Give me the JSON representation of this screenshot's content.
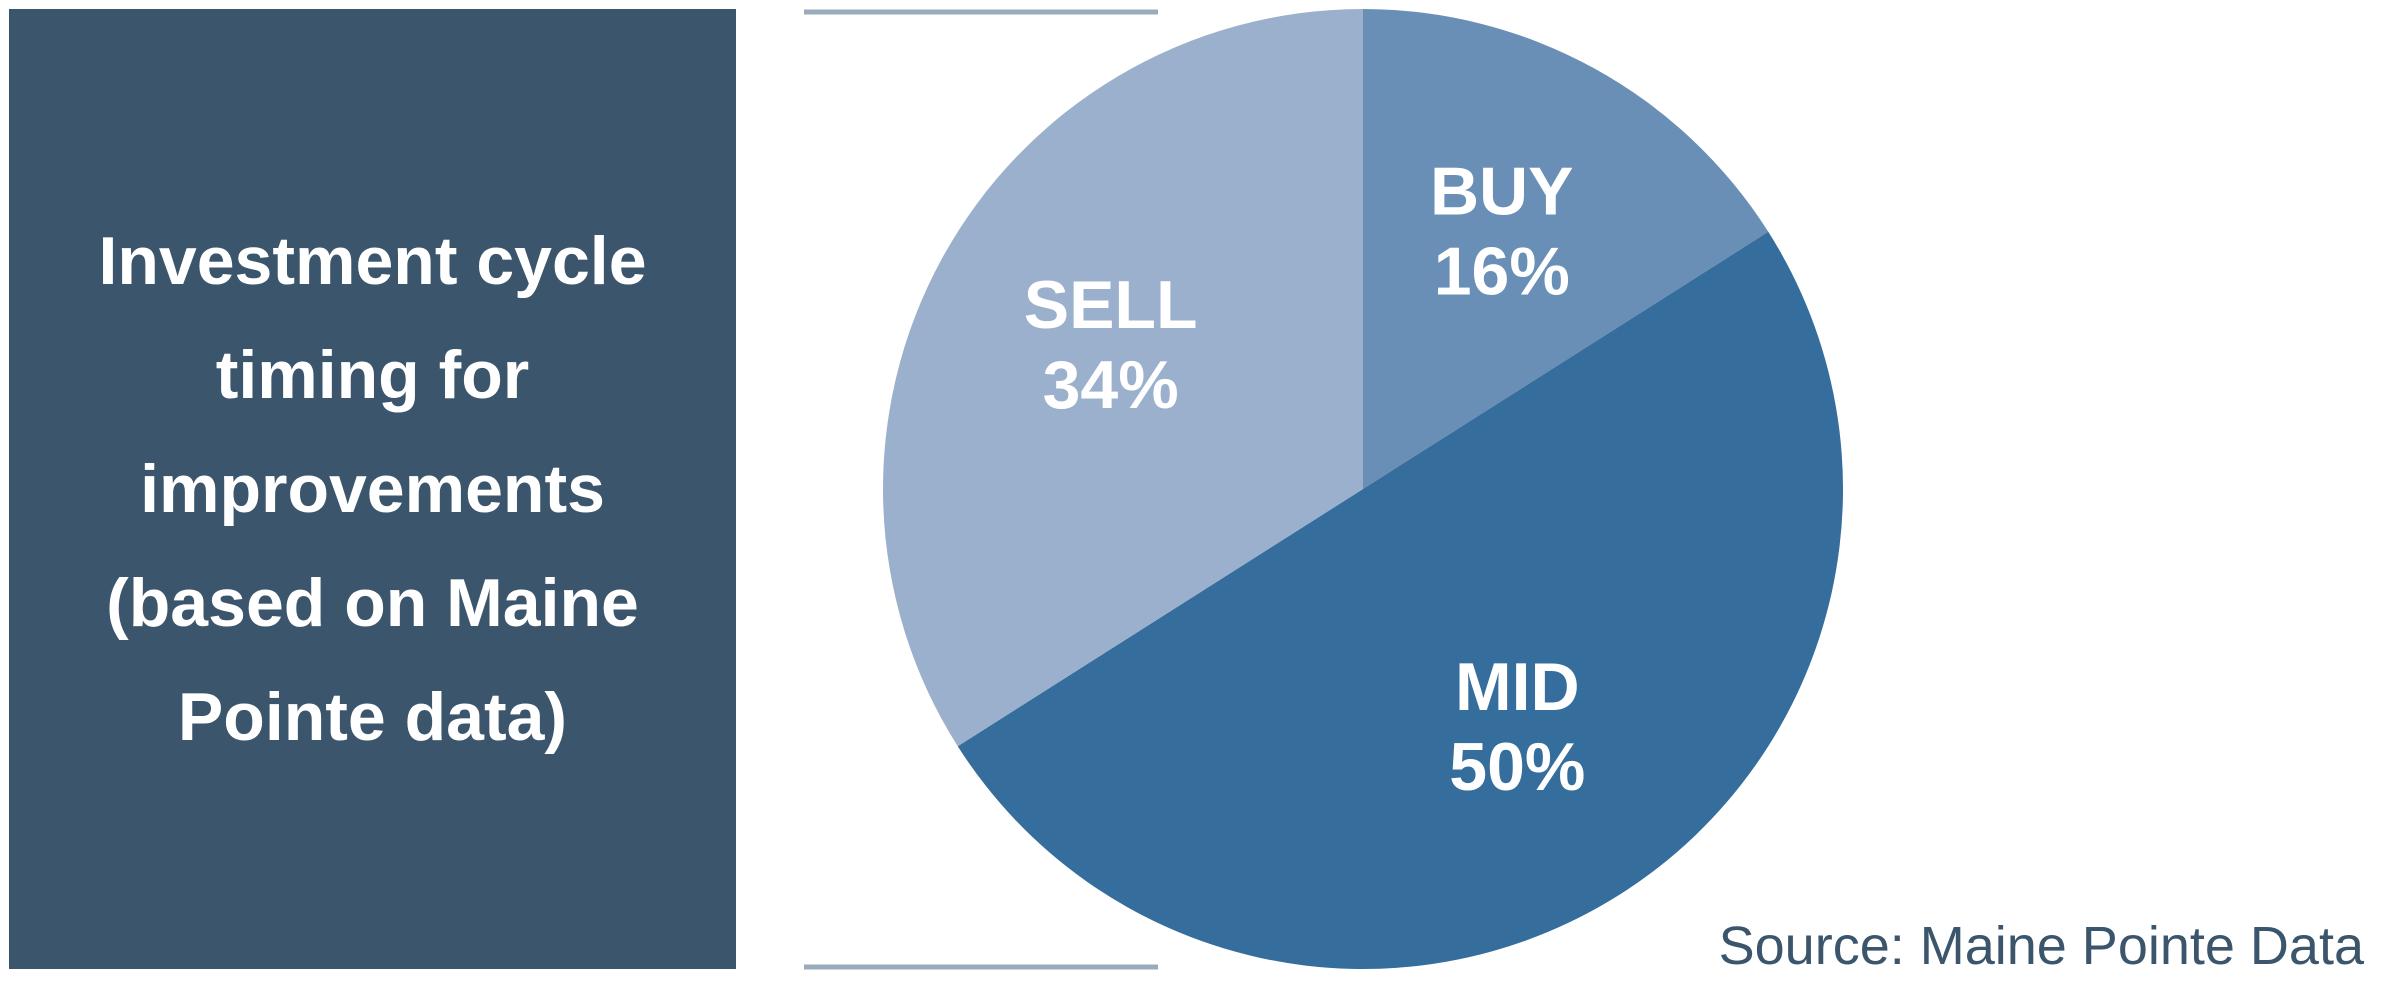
{
  "chart_data": {
    "type": "pie",
    "title": "Investment cycle timing for improvements (based on Maine Pointe data)",
    "categories": [
      "BUY",
      "MID",
      "SELL"
    ],
    "values": [
      16,
      50,
      34
    ],
    "value_labels": [
      "16%",
      "50%",
      "34%"
    ],
    "colors": [
      "#6a8fb6",
      "#356d9c",
      "#9bb0cc"
    ],
    "source": "Source: Maine Pointe Data"
  }
}
